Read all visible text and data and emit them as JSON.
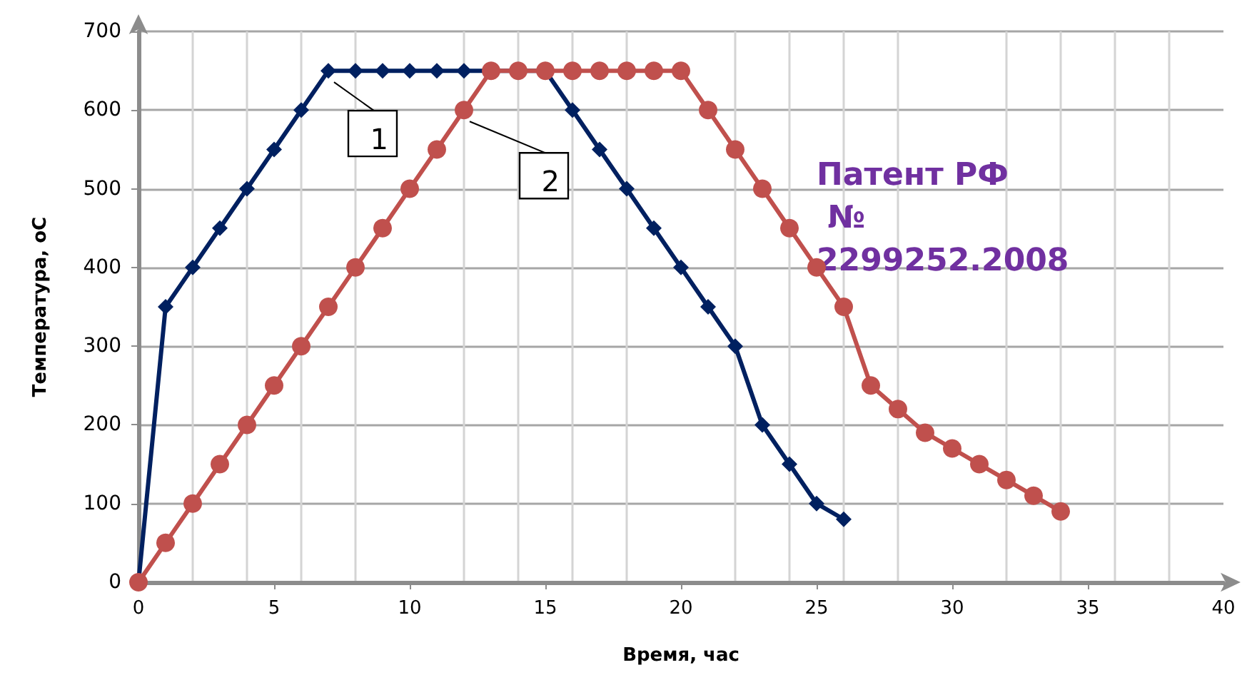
{
  "chart_data": {
    "type": "line",
    "xlabel": "Время, час",
    "ylabel": "Температура, оС",
    "annotations": [
      "Патент РФ № 2299252.2008"
    ],
    "xlim": [
      0,
      40
    ],
    "xticks": [
      0,
      5,
      10,
      15,
      20,
      25,
      30,
      35,
      40
    ],
    "ylim": [
      0,
      700
    ],
    "yticks": [
      0,
      100,
      200,
      300,
      400,
      500,
      600,
      700
    ],
    "grid": true,
    "legend": false,
    "series": [
      {
        "name": "1",
        "color": "#002060",
        "marker": "diamond",
        "x": [
          0,
          1,
          2,
          3,
          4,
          5,
          6,
          7,
          8,
          9,
          10,
          11,
          12,
          13,
          14,
          15,
          16,
          17,
          18,
          19,
          20,
          21,
          22,
          23,
          24,
          25,
          26
        ],
        "values": [
          0,
          350,
          400,
          450,
          500,
          550,
          600,
          650,
          650,
          650,
          650,
          650,
          650,
          650,
          650,
          650,
          600,
          550,
          500,
          450,
          400,
          350,
          300,
          200,
          150,
          100,
          80
        ]
      },
      {
        "name": "2",
        "color": "#c0504d",
        "marker": "circle",
        "x": [
          0,
          1,
          2,
          3,
          4,
          5,
          6,
          7,
          8,
          9,
          10,
          11,
          12,
          13,
          14,
          15,
          16,
          17,
          18,
          19,
          20,
          21,
          22,
          23,
          24,
          25,
          26,
          27,
          28,
          29,
          30,
          31,
          32,
          33,
          34
        ],
        "values": [
          0,
          50,
          100,
          150,
          200,
          250,
          300,
          350,
          400,
          450,
          500,
          550,
          600,
          650,
          650,
          650,
          650,
          650,
          650,
          650,
          650,
          600,
          550,
          500,
          450,
          400,
          350,
          250,
          220,
          190,
          170,
          150,
          130,
          110,
          90
        ]
      }
    ]
  }
}
